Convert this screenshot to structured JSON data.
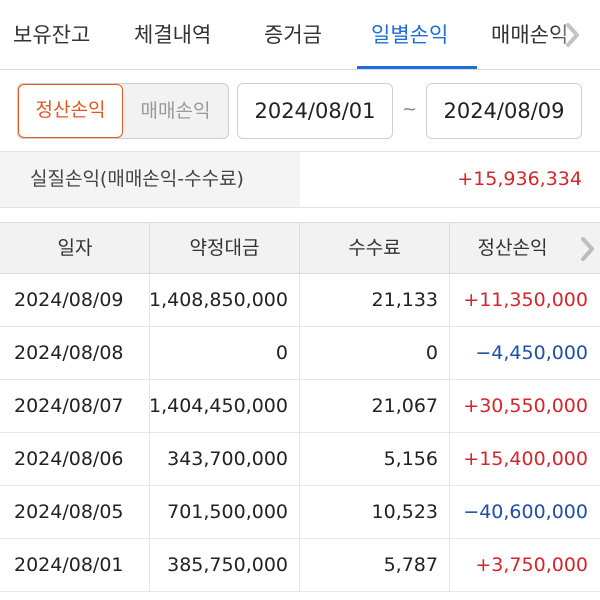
{
  "tabs": [
    {
      "label": "보유잔고",
      "active": false
    },
    {
      "label": "체결내역",
      "active": false
    },
    {
      "label": "증거금",
      "active": false
    },
    {
      "label": "일별손익",
      "active": true
    },
    {
      "label": "매매손익",
      "active": false
    }
  ],
  "filter": {
    "segment": {
      "selected": "정산손익",
      "unselected": "매매손익"
    },
    "start_date": "2024/08/01",
    "separator": "~",
    "end_date": "2024/08/09"
  },
  "summary": {
    "label": "실질손익(매매손익-수수료)",
    "value": "+15,936,334"
  },
  "table": {
    "headers": [
      "일자",
      "약정대금",
      "수수료",
      "정산손익"
    ],
    "rows": [
      {
        "date": "2024/08/09",
        "amount": "1,408,850,000",
        "fee": "21,133",
        "pnl": "+11,350,000",
        "sign": "pos"
      },
      {
        "date": "2024/08/08",
        "amount": "0",
        "fee": "0",
        "pnl": "−4,450,000",
        "sign": "neg"
      },
      {
        "date": "2024/08/07",
        "amount": "1,404,450,000",
        "fee": "21,067",
        "pnl": "+30,550,000",
        "sign": "pos"
      },
      {
        "date": "2024/08/06",
        "amount": "343,700,000",
        "fee": "5,156",
        "pnl": "+15,400,000",
        "sign": "pos"
      },
      {
        "date": "2024/08/05",
        "amount": "701,500,000",
        "fee": "10,523",
        "pnl": "−40,600,000",
        "sign": "neg"
      },
      {
        "date": "2024/08/01",
        "amount": "385,750,000",
        "fee": "5,787",
        "pnl": "+3,750,000",
        "sign": "pos"
      }
    ]
  },
  "colors": {
    "accent_blue": "#1e6fd9",
    "selected_orange": "#e4571f",
    "positive_red": "#d6262b",
    "negative_blue": "#1f4fa8"
  },
  "icons": {
    "tabs_scroll": "chevron-right-icon",
    "columns_scroll": "chevron-right-icon"
  }
}
